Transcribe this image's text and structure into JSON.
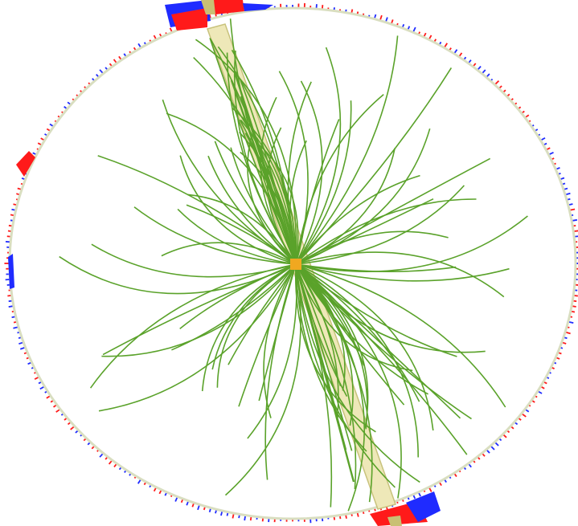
{
  "colors": {
    "background": "#ffffff",
    "track": "#5aa22a",
    "detector_ring": "#d9dec0",
    "jet_cone_fill": "#eee8b8",
    "jet_cone_stroke": "#c8c27c",
    "calo_hadronic": "#1f2bff",
    "calo_electromagnetic": "#ff1a1a",
    "vertex": "#f0a820"
  },
  "icons": {
    "vertex": "vertex-marker-icon"
  }
}
